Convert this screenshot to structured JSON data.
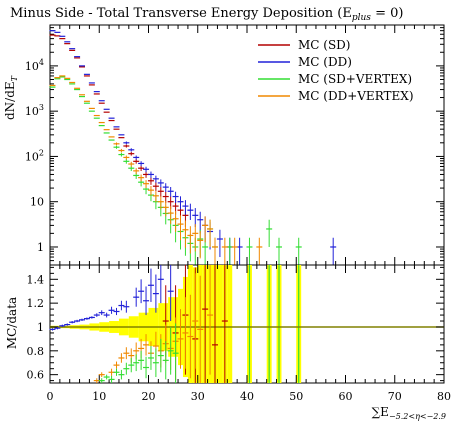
{
  "title": "Minus Side - Total Transverse Energy Deposition (E",
  "title_sub": "plus",
  "title_tail": " = 0)",
  "colors": {
    "sd": "#b40000",
    "dd": "#2020d8",
    "sd_vertex": "#33dd33",
    "dd_vertex": "#f08800",
    "band": "#ffff00",
    "unity": "#808000"
  },
  "chart_data": [
    {
      "type": "scatter",
      "panel": "main",
      "ylabel": "dN/dE",
      "ylabel_sub": "T",
      "xlim": [
        0,
        80
      ],
      "ylim": [
        0.4,
        80000
      ],
      "yscale": "log",
      "ytick_labels": [
        "1",
        "10",
        "10^2",
        "10^3",
        "10^4"
      ],
      "legend_position": "top-right",
      "series": [
        {
          "name": "MC (SD)",
          "color_key": "sd",
          "x": [
            0.5,
            1.5,
            2.5,
            3.5,
            4.5,
            5.5,
            6.5,
            7.5,
            8.5,
            9.5,
            10.5,
            11.5,
            12.5,
            13.5,
            14.5,
            15.5,
            16.5,
            17.5,
            18.5,
            19.5,
            20.5,
            21.5,
            22.5,
            23.5,
            24.5,
            25.5,
            26.5,
            27.5
          ],
          "y": [
            48000,
            46000,
            40000,
            31000,
            22000,
            15000,
            9500,
            6000,
            3800,
            2400,
            1500,
            950,
            620,
            400,
            260,
            170,
            115,
            78,
            55,
            40,
            29,
            22,
            17,
            13,
            10,
            8,
            6.5,
            5
          ]
        },
        {
          "name": "MC (DD)",
          "color_key": "dd",
          "x": [
            0.5,
            1.5,
            2.5,
            3.5,
            4.5,
            5.5,
            6.5,
            7.5,
            8.5,
            9.5,
            10.5,
            11.5,
            12.5,
            13.5,
            14.5,
            15.5,
            16.5,
            17.5,
            18.5,
            19.5,
            20.5,
            21.5,
            22.5,
            23.5,
            24.5,
            25.5,
            26.5,
            27.5,
            28.5,
            29.5,
            30.5,
            31.5,
            32.5,
            34.5,
            36.5,
            38.5,
            57.5
          ],
          "y": [
            60000,
            55000,
            45000,
            34000,
            24000,
            16000,
            10000,
            6500,
            4200,
            2700,
            1700,
            1100,
            700,
            450,
            300,
            200,
            140,
            95,
            70,
            52,
            40,
            32,
            26,
            21,
            17,
            13,
            10,
            8,
            6.5,
            5,
            4,
            3,
            2.2,
            1.5,
            1,
            1,
            1
          ]
        },
        {
          "name": "MC (SD+VERTEX)",
          "color_key": "sd_vertex",
          "x": [
            0.5,
            1.5,
            2.5,
            3.5,
            4.5,
            5.5,
            6.5,
            7.5,
            8.5,
            9.5,
            10.5,
            11.5,
            12.5,
            13.5,
            14.5,
            15.5,
            16.5,
            17.5,
            18.5,
            19.5,
            20.5,
            21.5,
            22.5,
            23.5,
            24.5,
            25.5,
            26.5,
            27.5,
            28.5,
            29.5,
            30.5,
            31.5,
            32.5,
            33.5,
            36.5,
            40.5,
            44.5,
            46.5,
            50.5
          ],
          "y": [
            3400,
            5200,
            5700,
            5000,
            4000,
            3000,
            2100,
            1500,
            1000,
            700,
            480,
            330,
            230,
            160,
            110,
            78,
            55,
            38,
            27,
            19,
            14,
            10,
            7.5,
            5.5,
            4,
            3,
            2.2,
            1.6,
            1.2,
            1,
            1.5,
            1,
            2.5,
            1,
            1,
            1,
            2.5,
            1,
            1
          ]
        },
        {
          "name": "MC (DD+VERTEX)",
          "color_key": "dd_vertex",
          "x": [
            0.5,
            1.5,
            2.5,
            3.5,
            4.5,
            5.5,
            6.5,
            7.5,
            8.5,
            9.5,
            10.5,
            11.5,
            12.5,
            13.5,
            14.5,
            15.5,
            16.5,
            17.5,
            18.5,
            19.5,
            20.5,
            21.5,
            22.5,
            23.5,
            24.5,
            25.5,
            26.5,
            27.5,
            28.5,
            29.5,
            30.5,
            31.5,
            32.5,
            33.5,
            35.5,
            37.5,
            42.5
          ],
          "y": [
            3700,
            5500,
            6000,
            5300,
            4300,
            3200,
            2300,
            1650,
            1150,
            800,
            560,
            390,
            270,
            190,
            135,
            95,
            68,
            48,
            34,
            25,
            18,
            13.5,
            10,
            7.5,
            5.6,
            4.2,
            3.2,
            2.4,
            1.8,
            2,
            1.4,
            3,
            2.5,
            1,
            1,
            1,
            1
          ]
        }
      ]
    },
    {
      "type": "scatter",
      "panel": "ratio",
      "ylabel": "MC/data",
      "xlabel": "∑E",
      "xlabel_sub": "−5.2<η<−2.9",
      "xlim": [
        0,
        80
      ],
      "ylim": [
        0.53,
        1.52
      ],
      "xticks": [
        0,
        10,
        20,
        30,
        40,
        50,
        60,
        70,
        80
      ],
      "yticks": [
        0.6,
        0.8,
        1,
        1.2,
        1.4
      ],
      "band": {
        "x_edges": [
          0,
          2,
          4,
          6,
          8,
          10,
          12,
          14,
          16,
          18,
          20,
          22,
          24,
          26,
          27,
          28,
          29,
          30,
          31,
          32,
          33,
          34,
          35,
          36,
          37
        ],
        "half_width": [
          0.01,
          0.01,
          0.015,
          0.02,
          0.03,
          0.04,
          0.05,
          0.07,
          0.09,
          0.12,
          0.16,
          0.2,
          0.25,
          0.32,
          0.42,
          0.6,
          0.5,
          1,
          0.6,
          1,
          0.8,
          1,
          0.7,
          1
        ]
      },
      "band_columns": [
        {
          "x0": 40,
          "x1": 41
        },
        {
          "x0": 44,
          "x1": 45
        },
        {
          "x0": 46,
          "x1": 47
        },
        {
          "x0": 50,
          "x1": 51
        }
      ],
      "series": [
        {
          "color_key": "dd",
          "x": [
            0.5,
            1.5,
            2.5,
            3.5,
            4.5,
            5.5,
            6.5,
            7.5,
            8.5,
            9.5,
            10.5,
            11.5,
            12.5,
            13.5,
            14.5,
            15.5,
            17.5,
            18.5,
            19.5,
            20.5,
            21.5,
            22.5,
            24.5
          ],
          "y": [
            0.98,
            0.99,
            1.01,
            1.02,
            1.04,
            1.05,
            1.06,
            1.07,
            1.08,
            1.1,
            1.12,
            1.1,
            1.14,
            1.13,
            1.18,
            1.17,
            1.25,
            1.3,
            1.22,
            1.35,
            1.28,
            1.4,
            1.3
          ],
          "err": [
            0.01,
            0.01,
            0.01,
            0.01,
            0.01,
            0.01,
            0.01,
            0.01,
            0.01,
            0.015,
            0.02,
            0.02,
            0.03,
            0.03,
            0.04,
            0.05,
            0.08,
            0.1,
            0.12,
            0.14,
            0.16,
            0.2,
            0.25
          ]
        },
        {
          "color_key": "sd",
          "x": [
            23.5,
            25.5,
            27.5,
            29.5,
            31.5,
            33.5,
            35.5
          ],
          "y": [
            1.05,
            0.95,
            1.1,
            0.9,
            1.15,
            0.85,
            1.05
          ],
          "err": [
            0.3,
            0.4,
            0.5,
            0.6,
            0.7,
            0.8,
            0.8
          ]
        },
        {
          "color_key": "dd_vertex",
          "x": [
            9.5,
            10.5,
            12.5,
            13.5,
            14.5,
            15.5,
            16.5,
            17.5,
            18.5,
            19.5,
            20.5,
            21.5,
            22.5,
            23.5,
            24.5,
            25.5,
            26.5,
            27.5,
            28.5,
            29.5,
            30.5,
            32.5
          ],
          "y": [
            0.55,
            0.6,
            0.62,
            0.68,
            0.74,
            0.78,
            0.76,
            0.8,
            0.82,
            0.85,
            0.78,
            0.84,
            0.8,
            0.86,
            0.82,
            0.88,
            0.9,
            0.95,
            0.92,
            1.05,
            0.98,
            1.1
          ],
          "err": [
            0.02,
            0.02,
            0.03,
            0.03,
            0.04,
            0.05,
            0.06,
            0.07,
            0.08,
            0.09,
            0.1,
            0.12,
            0.14,
            0.16,
            0.18,
            0.2,
            0.25,
            0.3,
            0.35,
            0.4,
            0.45,
            0.5
          ]
        },
        {
          "color_key": "sd_vertex",
          "x": [
            9.5,
            10.5,
            11.5,
            12.5,
            13.5,
            14.5,
            15.5,
            16.5,
            17.5,
            18.5,
            19.5,
            20.5,
            21.5,
            22.5,
            23.5,
            24.5,
            25.5
          ],
          "y": [
            0.5,
            0.55,
            0.58,
            0.56,
            0.62,
            0.6,
            0.65,
            0.68,
            0.7,
            0.72,
            0.66,
            0.74,
            0.7,
            0.76,
            0.72,
            0.8,
            0.78
          ],
          "err": [
            0.02,
            0.02,
            0.02,
            0.03,
            0.03,
            0.04,
            0.05,
            0.06,
            0.07,
            0.08,
            0.09,
            0.1,
            0.12,
            0.14,
            0.16,
            0.2,
            0.25
          ]
        }
      ]
    }
  ]
}
